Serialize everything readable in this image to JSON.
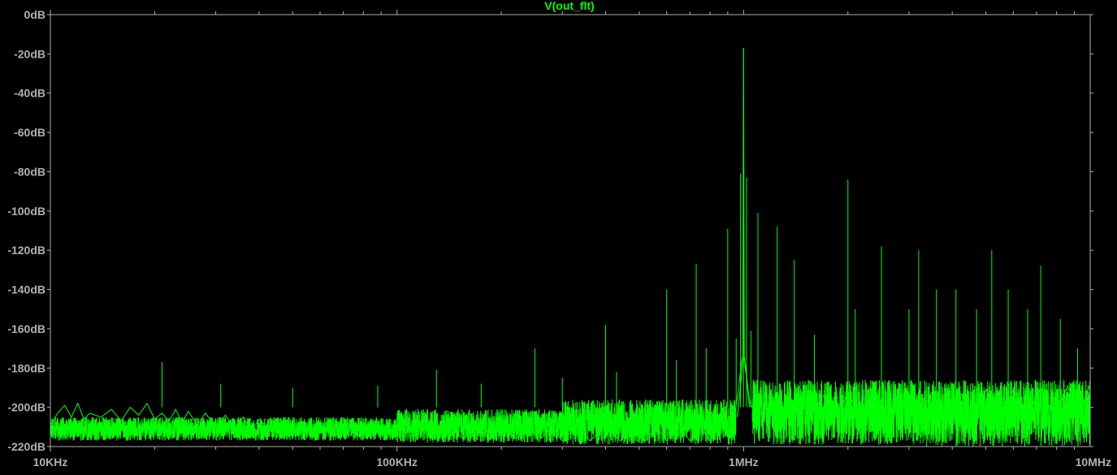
{
  "chart_data": {
    "type": "line",
    "title": "V(out_flt)",
    "x_scale": "log",
    "xlim": [
      10000,
      10000000
    ],
    "ylim": [
      -220,
      0
    ],
    "x_ticks": [
      {
        "value": 10000,
        "label": "10KHz"
      },
      {
        "value": 100000,
        "label": "100KHz"
      },
      {
        "value": 1000000,
        "label": "1MHz"
      },
      {
        "value": 10000000,
        "label": "10MHz"
      }
    ],
    "y_ticks": [
      {
        "value": 0,
        "label": "0dB"
      },
      {
        "value": -20,
        "label": "-20dB"
      },
      {
        "value": -40,
        "label": "-40dB"
      },
      {
        "value": -60,
        "label": "-60dB"
      },
      {
        "value": -80,
        "label": "-80dB"
      },
      {
        "value": -100,
        "label": "-100dB"
      },
      {
        "value": -120,
        "label": "-120dB"
      },
      {
        "value": -140,
        "label": "-140dB"
      },
      {
        "value": -160,
        "label": "-160dB"
      },
      {
        "value": -180,
        "label": "-180dB"
      },
      {
        "value": -200,
        "label": "-200dB"
      },
      {
        "value": -220,
        "label": "-220dB"
      }
    ],
    "grid": "x-minor-ticks-only",
    "series": [
      {
        "color": "#00ff00",
        "points": [
          [
            10000,
            -209
          ],
          [
            10500,
            -203
          ],
          [
            11000,
            -199
          ],
          [
            11500,
            -205
          ],
          [
            12000,
            -198
          ],
          [
            12500,
            -206
          ],
          [
            13000,
            -203
          ],
          [
            14000,
            -205
          ],
          [
            15000,
            -201
          ],
          [
            16000,
            -207
          ],
          [
            17000,
            -200
          ],
          [
            18000,
            -204
          ],
          [
            19000,
            -198
          ],
          [
            20000,
            -206
          ],
          [
            21000,
            -203
          ],
          [
            22000,
            -207
          ],
          [
            23000,
            -201
          ],
          [
            24000,
            -208
          ],
          [
            25000,
            -202
          ],
          [
            26500,
            -209
          ],
          [
            28000,
            -203
          ],
          [
            30000,
            -210
          ],
          [
            32000,
            -204
          ],
          [
            34000,
            -211
          ],
          [
            36000,
            -205
          ],
          [
            38000,
            -212
          ],
          [
            40000,
            -206
          ],
          [
            43000,
            -212
          ],
          [
            46000,
            -206
          ],
          [
            50000,
            -213
          ],
          [
            54000,
            -207
          ],
          [
            58000,
            -214
          ],
          [
            62000,
            -208
          ],
          [
            67000,
            -214
          ],
          [
            72000,
            -208
          ],
          [
            78000,
            -215
          ],
          [
            85000,
            -209
          ],
          [
            92000,
            -215
          ],
          [
            100000,
            -209
          ],
          [
            110000,
            -215
          ],
          [
            120000,
            -210
          ],
          [
            130000,
            -216
          ],
          [
            140000,
            -209
          ],
          [
            155000,
            -216
          ],
          [
            170000,
            -210
          ],
          [
            185000,
            -216
          ],
          [
            200000,
            -210
          ],
          [
            220000,
            -216
          ],
          [
            240000,
            -210
          ],
          [
            260000,
            -216
          ],
          [
            280000,
            -210
          ],
          [
            300000,
            -217
          ],
          [
            330000,
            -210
          ],
          [
            360000,
            -217
          ],
          [
            400000,
            -210
          ],
          [
            440000,
            -217
          ],
          [
            480000,
            -210
          ],
          [
            520000,
            -217
          ],
          [
            560000,
            -210
          ],
          [
            600000,
            -217
          ],
          [
            650000,
            -210
          ],
          [
            700000,
            -217
          ],
          [
            750000,
            -210
          ],
          [
            800000,
            -217
          ],
          [
            850000,
            -209
          ],
          [
            900000,
            -214
          ],
          [
            930000,
            -206
          ],
          [
            950000,
            -200
          ],
          [
            965000,
            -192
          ],
          [
            975000,
            -185
          ],
          [
            985000,
            -178
          ],
          [
            995000,
            -174
          ],
          [
            1000000,
            -17
          ],
          [
            1005000,
            -174
          ],
          [
            1015000,
            -180
          ],
          [
            1025000,
            -187
          ],
          [
            1035000,
            -194
          ],
          [
            1045000,
            -198
          ],
          [
            1060000,
            -200
          ],
          [
            1080000,
            -202
          ],
          [
            1120000,
            -196
          ],
          [
            1180000,
            -203
          ],
          [
            1250000,
            -195
          ],
          [
            1350000,
            -204
          ],
          [
            1450000,
            -194
          ],
          [
            1550000,
            -204
          ],
          [
            1700000,
            -194
          ],
          [
            1850000,
            -205
          ],
          [
            2000000,
            -193
          ],
          [
            2200000,
            -205
          ],
          [
            2400000,
            -193
          ],
          [
            2650000,
            -205
          ],
          [
            2900000,
            -193
          ],
          [
            3200000,
            -205
          ],
          [
            3500000,
            -192
          ],
          [
            3850000,
            -205
          ],
          [
            4200000,
            -192
          ],
          [
            4600000,
            -205
          ],
          [
            5000000,
            -191
          ],
          [
            5500000,
            -205
          ],
          [
            6000000,
            -191
          ],
          [
            6600000,
            -205
          ],
          [
            7200000,
            -190
          ],
          [
            7900000,
            -205
          ],
          [
            8600000,
            -189
          ],
          [
            9300000,
            -204
          ],
          [
            10000000,
            -188
          ]
        ]
      }
    ],
    "noise_bands": [
      {
        "f_start": 10000,
        "f_end": 100000,
        "top": -205,
        "bottom": -217
      },
      {
        "f_start": 100000,
        "f_end": 300000,
        "top": -201,
        "bottom": -218
      },
      {
        "f_start": 300000,
        "f_end": 950000,
        "top": -196,
        "bottom": -219
      },
      {
        "f_start": 1060000,
        "f_end": 3000000,
        "top": -186,
        "bottom": -219
      },
      {
        "f_start": 3000000,
        "f_end": 10000000,
        "top": -186,
        "bottom": -220
      }
    ],
    "spurs": [
      {
        "f": 21000,
        "db": -177
      },
      {
        "f": 31000,
        "db": -188
      },
      {
        "f": 50000,
        "db": -190
      },
      {
        "f": 88000,
        "db": -189
      },
      {
        "f": 130000,
        "db": -181
      },
      {
        "f": 175000,
        "db": -188
      },
      {
        "f": 250000,
        "db": -170
      },
      {
        "f": 300000,
        "db": -185
      },
      {
        "f": 400000,
        "db": -158
      },
      {
        "f": 430000,
        "db": -182
      },
      {
        "f": 600000,
        "db": -140
      },
      {
        "f": 640000,
        "db": -176
      },
      {
        "f": 730000,
        "db": -127
      },
      {
        "f": 780000,
        "db": -170
      },
      {
        "f": 900000,
        "db": -109
      },
      {
        "f": 952000,
        "db": -165
      },
      {
        "f": 980000,
        "db": -81
      },
      {
        "f": 1000000,
        "db": -17
      },
      {
        "f": 1020000,
        "db": -83
      },
      {
        "f": 1050000,
        "db": -161
      },
      {
        "f": 1100000,
        "db": -101
      },
      {
        "f": 1250000,
        "db": -108
      },
      {
        "f": 1400000,
        "db": -125
      },
      {
        "f": 1600000,
        "db": -163
      },
      {
        "f": 2000000,
        "db": -84
      },
      {
        "f": 2100000,
        "db": -150
      },
      {
        "f": 2500000,
        "db": -118
      },
      {
        "f": 3000000,
        "db": -150
      },
      {
        "f": 3200000,
        "db": -120
      },
      {
        "f": 3600000,
        "db": -140
      },
      {
        "f": 4100000,
        "db": -140
      },
      {
        "f": 4700000,
        "db": -150
      },
      {
        "f": 5200000,
        "db": -120
      },
      {
        "f": 5800000,
        "db": -140
      },
      {
        "f": 6600000,
        "db": -150
      },
      {
        "f": 7200000,
        "db": -128
      },
      {
        "f": 8200000,
        "db": -155
      },
      {
        "f": 9200000,
        "db": -170
      }
    ]
  }
}
